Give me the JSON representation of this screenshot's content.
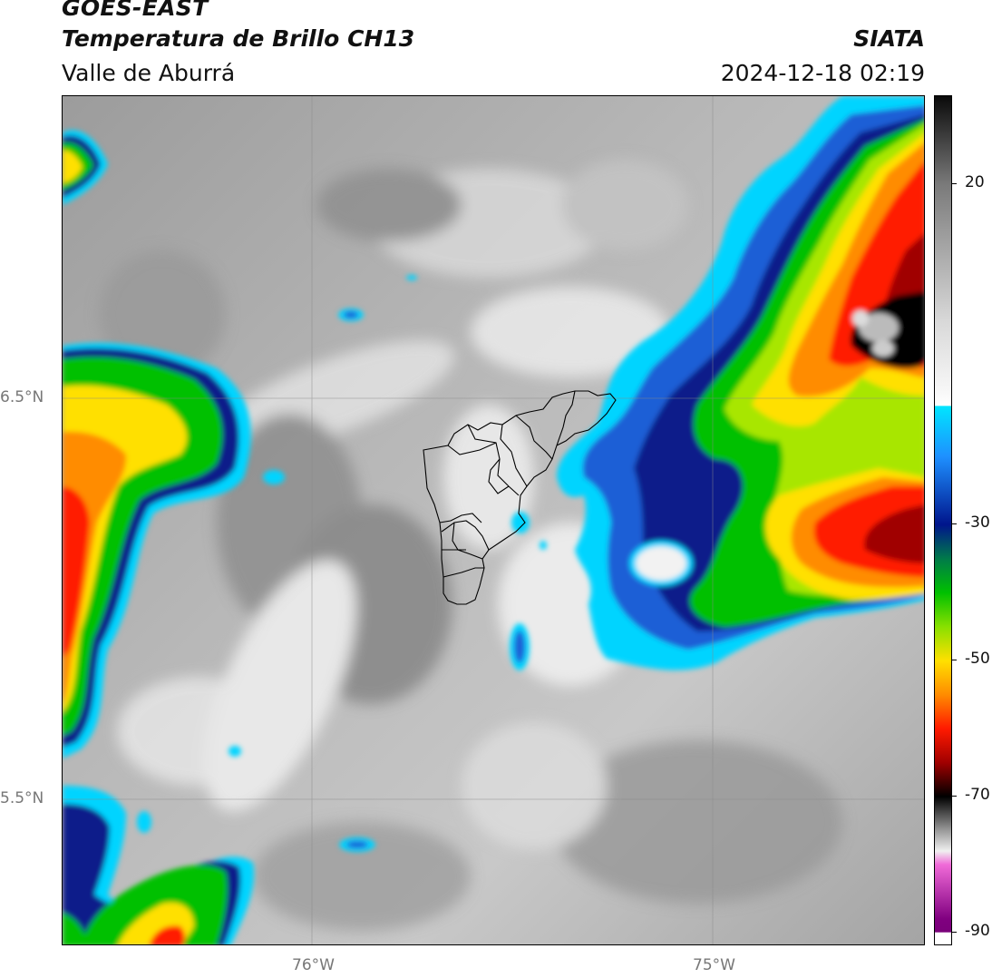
{
  "header": {
    "satellite": "GOES-EAST",
    "product": "Temperatura de Brillo CH13",
    "organization": "SIATA",
    "region": "Valle de Aburrá",
    "datetime": "2024-12-18 02:19"
  },
  "map": {
    "lat_labels": [
      {
        "label": "6.5°N",
        "lat": 6.5
      },
      {
        "label": "5.5°N",
        "lat": 5.5
      }
    ],
    "lon_labels": [
      {
        "label": "76°W",
        "lon": -76
      },
      {
        "label": "75°W",
        "lon": -75
      }
    ],
    "extent": {
      "lon_min": -76.62,
      "lon_max": -74.47,
      "lat_min": 5.14,
      "lat_max": 7.25
    }
  },
  "colorbar": {
    "range": [
      -92,
      33
    ],
    "tick_values": [
      20,
      -30,
      -50,
      -70,
      -90
    ],
    "tick_labels": [
      "20",
      "-30",
      "-50",
      "-70",
      "-90"
    ],
    "stops": [
      {
        "t": 33,
        "color": "#0a0a0a"
      },
      {
        "t": 20,
        "color": "#7a7a7a"
      },
      {
        "t": 0,
        "color": "#d8d8d8"
      },
      {
        "t": -10,
        "color": "#f6f6f6"
      },
      {
        "t": -12.5,
        "color": "#ffffff"
      },
      {
        "t": -12.6,
        "color": "#00e5ff"
      },
      {
        "t": -20,
        "color": "#1e90ff"
      },
      {
        "t": -30,
        "color": "#00158c"
      },
      {
        "t": -35,
        "color": "#007a4a"
      },
      {
        "t": -40,
        "color": "#00c000"
      },
      {
        "t": -45,
        "color": "#88e000"
      },
      {
        "t": -50,
        "color": "#ffe000"
      },
      {
        "t": -55,
        "color": "#ff8c00"
      },
      {
        "t": -60,
        "color": "#ff1a00"
      },
      {
        "t": -65,
        "color": "#a00000"
      },
      {
        "t": -70,
        "color": "#000000"
      },
      {
        "t": -75,
        "color": "#9a9a9a"
      },
      {
        "t": -78,
        "color": "#f0f0f0"
      },
      {
        "t": -80,
        "color": "#f06ad8"
      },
      {
        "t": -88,
        "color": "#800080"
      },
      {
        "t": -89.9,
        "color": "#7a007a"
      },
      {
        "t": -90,
        "color": "#ffffff"
      }
    ]
  }
}
